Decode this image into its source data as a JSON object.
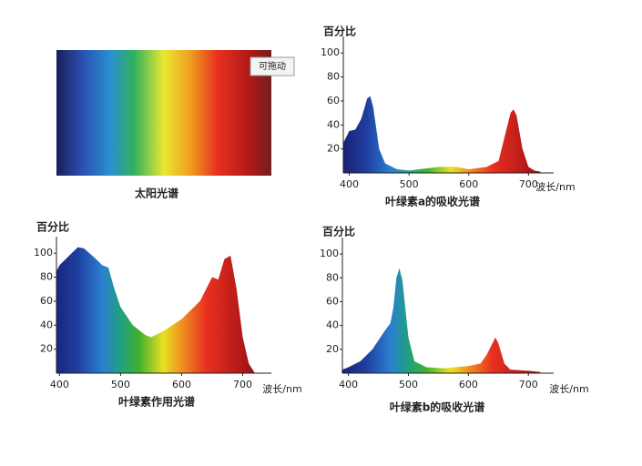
{
  "spectrum_panel": {
    "caption": "太阳光谱"
  },
  "drag_hint": "可拖动",
  "chart_data": [
    {
      "type": "area",
      "title": "叶绿素a的吸收光谱",
      "y_label": "百分比",
      "x_label": "波长/nm",
      "x": [
        390,
        400,
        410,
        420,
        430,
        435,
        440,
        450,
        460,
        480,
        500,
        550,
        580,
        600,
        630,
        650,
        660,
        670,
        675,
        680,
        690,
        700,
        710,
        720
      ],
      "values": [
        25,
        35,
        36,
        45,
        62,
        64,
        55,
        20,
        8,
        3,
        2,
        5,
        5,
        3,
        5,
        10,
        30,
        50,
        53,
        48,
        20,
        5,
        2,
        1
      ],
      "xlim": [
        390,
        730
      ],
      "ylim": [
        0,
        110
      ],
      "xticks": [
        400,
        500,
        600,
        700
      ],
      "yticks": [
        20,
        40,
        60,
        80,
        100
      ]
    },
    {
      "type": "area",
      "title": "叶绿素作用光谱",
      "y_label": "百分比",
      "x_label": "波长/nm",
      "x": [
        395,
        400,
        420,
        430,
        440,
        460,
        470,
        480,
        490,
        500,
        520,
        540,
        550,
        570,
        600,
        630,
        650,
        660,
        670,
        680,
        690,
        700,
        710,
        720
      ],
      "values": [
        85,
        90,
        100,
        105,
        104,
        95,
        90,
        88,
        70,
        55,
        40,
        32,
        30,
        35,
        45,
        60,
        80,
        78,
        95,
        98,
        70,
        30,
        8,
        0
      ],
      "xlim": [
        395,
        735
      ],
      "ylim": [
        0,
        110
      ],
      "xticks": [
        400,
        500,
        600,
        700
      ],
      "yticks": [
        20,
        40,
        60,
        80,
        100
      ]
    },
    {
      "type": "area",
      "title": "叶绿素b的吸收光谱",
      "y_label": "百分比",
      "x_label": "波长/nm",
      "x": [
        390,
        400,
        420,
        440,
        460,
        470,
        475,
        480,
        485,
        490,
        500,
        510,
        530,
        560,
        600,
        620,
        630,
        640,
        645,
        650,
        660,
        670,
        700,
        720
      ],
      "values": [
        3,
        5,
        10,
        20,
        35,
        42,
        55,
        80,
        88,
        78,
        30,
        10,
        5,
        4,
        6,
        8,
        15,
        25,
        30,
        25,
        8,
        3,
        2,
        1
      ],
      "xlim": [
        390,
        730
      ],
      "ylim": [
        0,
        110
      ],
      "xticks": [
        400,
        500,
        600,
        700
      ],
      "yticks": [
        20,
        40,
        60,
        80,
        100
      ]
    }
  ]
}
